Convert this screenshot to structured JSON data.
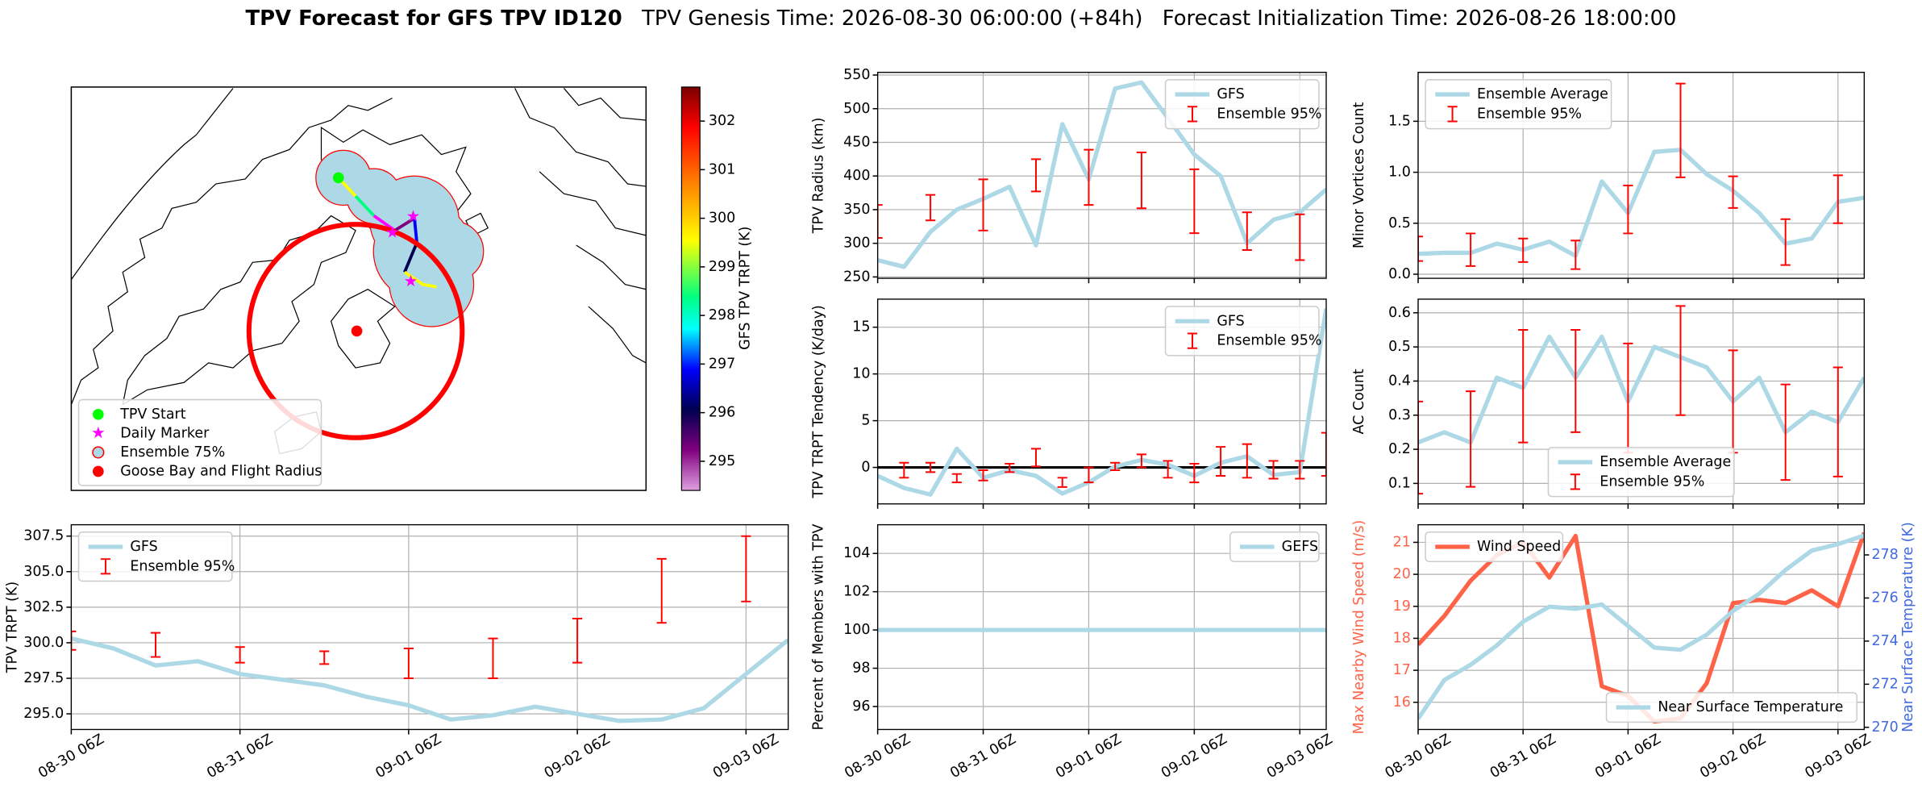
{
  "title": {
    "main": "TPV Forecast for GFS TPV ID120",
    "genesis": "TPV Genesis Time: 2026-08-30 06:00:00 (+84h)",
    "init": "Forecast Initialization Time: 2026-08-26 18:00:00"
  },
  "chart_data": [
    {
      "type": "map",
      "legend": "lower left",
      "colorbar": {
        "label": "GFS TPV TRPT (K)",
        "clim": [
          294.4,
          302.7
        ],
        "ticks": [
          295,
          296,
          297,
          298,
          299,
          300,
          301,
          302
        ]
      },
      "entries": [
        {
          "name": "TPV Start",
          "color": "#00ff00",
          "marker": "circle"
        },
        {
          "name": "Daily Marker",
          "color": "#ff00ff",
          "marker": "star"
        },
        {
          "name": "Ensemble 75%",
          "color": "#add8e6",
          "edgecolor": "#ff0000",
          "marker": "circle"
        },
        {
          "name": "Goose Bay and Flight Radius",
          "color": "#ff0000",
          "marker": "circle"
        }
      ]
    },
    {
      "type": "line",
      "ylabel": "TPV Radius (km)",
      "ylim": [
        248,
        554
      ],
      "yticks": [
        250,
        300,
        350,
        400,
        450,
        500,
        550
      ],
      "grid": true,
      "legend": "upper right",
      "series": [
        {
          "name": "GFS",
          "kind": "line",
          "color": "#add8e6",
          "values": [
            275,
            265,
            317,
            350,
            366,
            384,
            297,
            477,
            395,
            530,
            539,
            486,
            432,
            400,
            300,
            335,
            346,
            380
          ]
        },
        {
          "name": "Ensemble 95%",
          "kind": "errorbar",
          "color": "#ff0000",
          "low": [
            308,
            null,
            334,
            null,
            319,
            null,
            377,
            null,
            357,
            null,
            352,
            null,
            315,
            null,
            290,
            null,
            275,
            null
          ],
          "high": [
            357,
            null,
            372,
            null,
            395,
            null,
            425,
            null,
            439,
            null,
            435,
            null,
            410,
            null,
            346,
            null,
            343,
            null
          ]
        }
      ]
    },
    {
      "type": "line",
      "ylabel": "Minor Vortices Count",
      "ylim": [
        -0.04,
        1.98
      ],
      "yticks": [
        {
          "value": 0,
          "label": "0.0"
        },
        0.5,
        {
          "value": 1,
          "label": "1.0"
        },
        1.5
      ],
      "grid": true,
      "legend": "upper left",
      "series": [
        {
          "name": "Ensemble Average",
          "kind": "line",
          "color": "#add8e6",
          "values": [
            0.2,
            0.21,
            0.21,
            0.3,
            0.24,
            0.32,
            0.18,
            0.91,
            0.6,
            1.2,
            1.22,
            0.98,
            0.82,
            0.6,
            0.3,
            0.35,
            0.71,
            0.75
          ]
        },
        {
          "name": "Ensemble 95%",
          "kind": "errorbar",
          "color": "#ff0000",
          "low": [
            0.13,
            null,
            0.08,
            null,
            0.12,
            null,
            0.05,
            null,
            0.4,
            null,
            0.95,
            null,
            0.65,
            null,
            0.09,
            null,
            0.5,
            null
          ],
          "high": [
            0.37,
            null,
            0.4,
            null,
            0.35,
            null,
            0.33,
            null,
            0.87,
            null,
            1.87,
            null,
            0.96,
            null,
            0.54,
            null,
            0.97,
            null
          ]
        }
      ]
    },
    {
      "type": "line",
      "ylabel": "TPV TRPT Tendency (K/day)",
      "ylim": [
        -3.9,
        18
      ],
      "yticks": [
        0,
        5,
        10,
        15
      ],
      "grid": true,
      "legend": "upper right",
      "hline": 0,
      "series": [
        {
          "name": "GFS",
          "kind": "line",
          "color": "#add8e6",
          "values": [
            -0.9,
            -2.2,
            -2.9,
            2.0,
            -1.1,
            -0.3,
            -0.9,
            -2.8,
            -1.6,
            0.1,
            0.8,
            0.3,
            -0.9,
            0.5,
            1.2,
            -0.8,
            -0.5,
            17.0
          ]
        },
        {
          "name": "Ensemble 95%",
          "kind": "errorbar",
          "color": "#ff0000",
          "low": [
            null,
            -1.1,
            -0.5,
            -1.6,
            -1.4,
            -0.5,
            0.1,
            -2.1,
            -1.6,
            -0.3,
            0,
            -1.1,
            -1.6,
            -0.9,
            -1.1,
            -1.2,
            -1.2,
            -0.9
          ],
          "high": [
            null,
            0.5,
            0.5,
            -0.7,
            -0.3,
            0.4,
            2.0,
            -1.1,
            0,
            0.5,
            1.4,
            0.7,
            0.4,
            2.2,
            2.5,
            0.7,
            0.7,
            3.7
          ]
        }
      ]
    },
    {
      "type": "line",
      "ylabel": "AC Count",
      "ylim": [
        0.04,
        0.64
      ],
      "yticks": [
        0.1,
        0.2,
        0.3,
        0.4,
        0.5,
        0.6
      ],
      "grid": true,
      "legend": "lower center",
      "series": [
        {
          "name": "Ensemble Average",
          "kind": "line",
          "color": "#add8e6",
          "values": [
            0.22,
            0.25,
            0.22,
            0.41,
            0.38,
            0.53,
            0.41,
            0.53,
            0.34,
            0.5,
            0.47,
            0.44,
            0.34,
            0.41,
            0.25,
            0.31,
            0.28,
            0.41
          ]
        },
        {
          "name": "Ensemble 95%",
          "kind": "errorbar",
          "color": "#ff0000",
          "low": [
            0.07,
            null,
            0.09,
            null,
            0.22,
            null,
            0.25,
            null,
            0.19,
            null,
            0.3,
            null,
            0.19,
            null,
            0.11,
            null,
            0.12,
            null
          ],
          "high": [
            0.34,
            null,
            0.37,
            null,
            0.55,
            null,
            0.55,
            null,
            0.51,
            null,
            0.62,
            null,
            0.49,
            null,
            0.39,
            null,
            0.44,
            null
          ]
        }
      ]
    },
    {
      "type": "line",
      "ylabel": "TPV TRPT (K)",
      "ylim": [
        293.9,
        308.3
      ],
      "yticks": [
        {
          "value": 295,
          "label": "295.0"
        },
        297.5,
        {
          "value": 300,
          "label": "300.0"
        },
        302.5,
        {
          "value": 305,
          "label": "305.0"
        },
        307.5
      ],
      "grid": true,
      "legend": "upper left",
      "categories": [
        "08-30 06Z",
        null,
        null,
        null,
        "08-31 06Z",
        null,
        null,
        null,
        "09-01 06Z",
        null,
        null,
        null,
        "09-02 06Z",
        null,
        null,
        null,
        "09-03 06Z",
        null
      ],
      "series": [
        {
          "name": "GFS",
          "kind": "line",
          "color": "#add8e6",
          "values": [
            300.3,
            299.6,
            298.4,
            298.7,
            297.8,
            297.4,
            297.0,
            296.2,
            295.6,
            294.6,
            294.9,
            295.5,
            295.0,
            294.5,
            294.6,
            295.4,
            297.8,
            300.2
          ]
        },
        {
          "name": "Ensemble 95%",
          "kind": "errorbar",
          "color": "#ff0000",
          "low": [
            299.5,
            null,
            299.0,
            null,
            298.6,
            null,
            298.5,
            null,
            297.5,
            null,
            297.5,
            null,
            298.6,
            null,
            301.4,
            null,
            302.9,
            null
          ],
          "high": [
            300.8,
            null,
            300.7,
            null,
            299.7,
            null,
            299.4,
            null,
            299.6,
            null,
            300.3,
            null,
            301.7,
            null,
            305.9,
            null,
            307.5,
            null
          ]
        }
      ]
    },
    {
      "type": "line",
      "ylabel": "Percent of Members with TPV",
      "ylim": [
        94.8,
        105.5
      ],
      "yticks": [
        96,
        98,
        100,
        102,
        104
      ],
      "grid": true,
      "legend": "upper right",
      "categories": [
        "08-30 06Z",
        null,
        null,
        null,
        "08-31 06Z",
        null,
        null,
        null,
        "09-01 06Z",
        null,
        null,
        null,
        "09-02 06Z",
        null,
        null,
        null,
        "09-03 06Z",
        null
      ],
      "series": [
        {
          "name": "GEFS",
          "kind": "line",
          "color": "#add8e6",
          "values": [
            100,
            100,
            100,
            100,
            100,
            100,
            100,
            100,
            100,
            100,
            100,
            100,
            100,
            100,
            100,
            100,
            100,
            100
          ]
        }
      ]
    },
    {
      "type": "line",
      "ylabel": "Max Nearby Wind Speed (m/s)",
      "ylabel_color": "#ff6347",
      "ylim": [
        15.15,
        21.55
      ],
      "yticks": [
        16,
        17,
        18,
        19,
        20,
        21
      ],
      "y2label": "Near Surface Temperature (K)",
      "y2label_color": "#4169e1",
      "y2lim": [
        269.9,
        279.4
      ],
      "y2ticks": [
        270,
        272,
        274,
        276,
        278
      ],
      "grid": true,
      "legend": "upper left",
      "legend2": "lower right",
      "categories": [
        "08-30 06Z",
        null,
        null,
        null,
        "08-31 06Z",
        null,
        null,
        null,
        "09-01 06Z",
        null,
        null,
        null,
        "09-02 06Z",
        null,
        null,
        null,
        "09-03 06Z",
        null
      ],
      "series": [
        {
          "name": "Wind Speed",
          "kind": "line",
          "color": "#ff6347",
          "values": [
            17.8,
            18.7,
            19.8,
            20.6,
            21.0,
            19.9,
            21.2,
            16.5,
            16.2,
            15.4,
            15.5,
            16.6,
            19.1,
            19.2,
            19.1,
            19.5,
            19.0,
            21.3
          ]
        },
        {
          "name": "Near Surface Temperature",
          "kind": "line",
          "axis": "y2",
          "color": "#add8e6",
          "values": [
            270.4,
            272.2,
            272.9,
            273.8,
            274.9,
            275.6,
            275.5,
            275.7,
            274.7,
            273.7,
            273.6,
            274.3,
            275.4,
            276.2,
            277.3,
            278.2,
            278.5,
            278.9
          ]
        }
      ]
    }
  ]
}
